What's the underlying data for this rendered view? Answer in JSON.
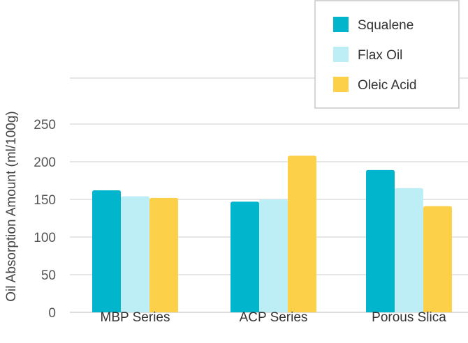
{
  "chart_data": {
    "type": "bar",
    "categories": [
      "MBP Series",
      "ACP Series",
      "Porous Slica"
    ],
    "series": [
      {
        "name": "Squalene",
        "color": "#00b5cc",
        "values": [
          162,
          147,
          189
        ]
      },
      {
        "name": "Flax Oil",
        "color": "#bdeef6",
        "values": [
          154,
          150,
          165
        ]
      },
      {
        "name": "Oleic Acid",
        "color": "#fdd049",
        "values": [
          152,
          208,
          141
        ]
      }
    ],
    "title": "",
    "xlabel": "",
    "ylabel": "Oil Absorption Amount (ml/100g)",
    "ylim": [
      0,
      250
    ],
    "yticks": [
      0,
      50,
      100,
      150,
      200,
      250
    ],
    "grid": true,
    "legend_position": "top-right"
  }
}
